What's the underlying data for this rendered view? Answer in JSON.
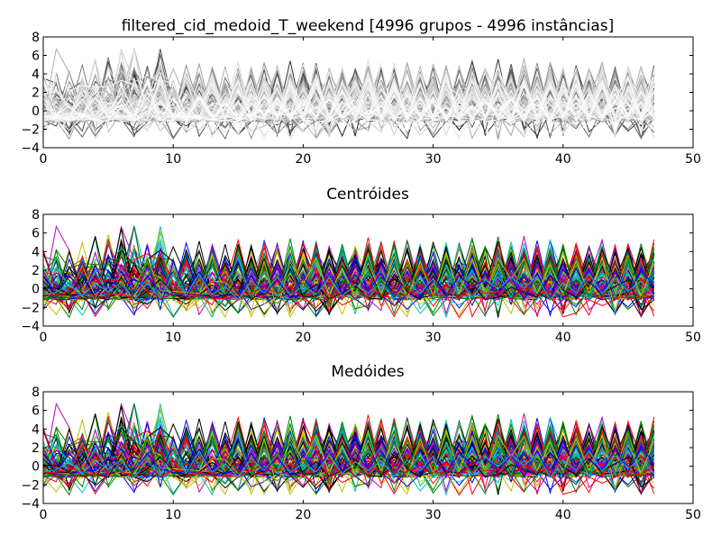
{
  "chart_data": [
    {
      "type": "line",
      "title": "filtered_cid_medoid_T_weekend [4996 grupos - 4996 instâncias]",
      "xlabel": "",
      "ylabel": "",
      "xlim": [
        0,
        50
      ],
      "ylim": [
        -4,
        8
      ],
      "xticks": [
        "0",
        "10",
        "20",
        "30",
        "40",
        "50"
      ],
      "yticks": [
        "−4",
        "−2",
        "0",
        "2",
        "4",
        "6",
        "8"
      ],
      "grid": false,
      "legend": "none",
      "color_scheme": "grayscale",
      "series_count": 4996,
      "x_range": [
        0,
        47
      ],
      "typical_range": [
        -1.5,
        6.5
      ]
    },
    {
      "type": "line",
      "title": "Centróides",
      "xlabel": "",
      "ylabel": "",
      "xlim": [
        0,
        50
      ],
      "ylim": [
        -4,
        8
      ],
      "xticks": [
        "0",
        "10",
        "20",
        "30",
        "40",
        "50"
      ],
      "yticks": [
        "−4",
        "−2",
        "0",
        "2",
        "4",
        "6",
        "8"
      ],
      "grid": false,
      "legend": "none",
      "color_scheme": "cycle",
      "colors": [
        "#0000ff",
        "#008000",
        "#ff0000",
        "#00bfbf",
        "#bf00bf",
        "#bfbf00",
        "#000000"
      ],
      "x_range": [
        0,
        47
      ],
      "typical_range": [
        -1.5,
        6.5
      ]
    },
    {
      "type": "line",
      "title": "Medóides",
      "xlabel": "",
      "ylabel": "",
      "xlim": [
        0,
        50
      ],
      "ylim": [
        -4,
        8
      ],
      "xticks": [
        "0",
        "10",
        "20",
        "30",
        "40",
        "50"
      ],
      "yticks": [
        "−4",
        "−2",
        "0",
        "2",
        "4",
        "6",
        "8"
      ],
      "grid": false,
      "legend": "none",
      "color_scheme": "cycle",
      "colors": [
        "#0000ff",
        "#008000",
        "#ff0000",
        "#00bfbf",
        "#bf00bf",
        "#bfbf00",
        "#000000"
      ],
      "x_range": [
        0,
        47
      ],
      "typical_range": [
        -1.5,
        6.5
      ]
    }
  ]
}
